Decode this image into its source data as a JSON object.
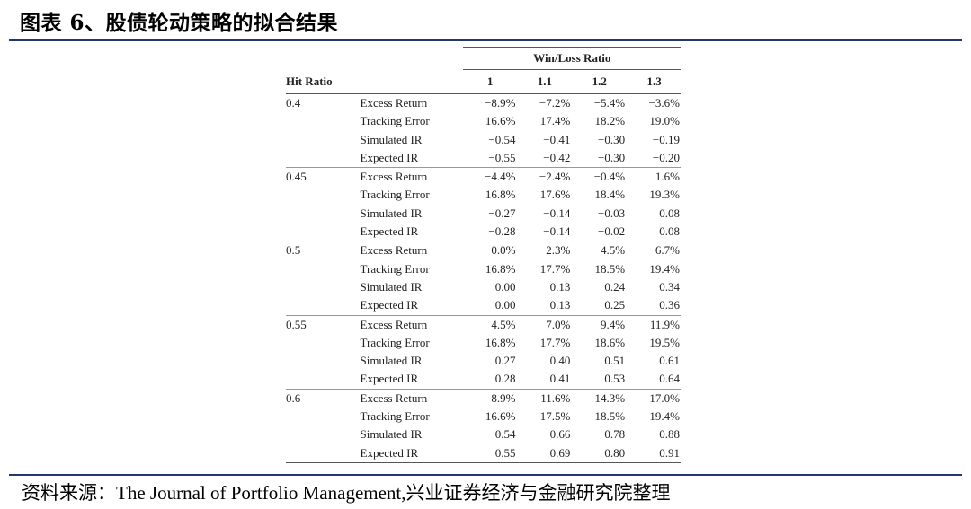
{
  "figure": {
    "title": "图表 6、股债轮动策略的拟合结果"
  },
  "table": {
    "row_header": "Hit Ratio",
    "spanner": "Win/Loss Ratio",
    "columns": [
      "1",
      "1.1",
      "1.2",
      "1.3"
    ],
    "groups": [
      {
        "hit_ratio": "0.4",
        "rows": [
          {
            "metric": "Excess Return",
            "values": [
              "−8.9%",
              "−7.2%",
              "−5.4%",
              "−3.6%"
            ]
          },
          {
            "metric": "Tracking Error",
            "values": [
              "16.6%",
              "17.4%",
              "18.2%",
              "19.0%"
            ]
          },
          {
            "metric": "Simulated IR",
            "values": [
              "−0.54",
              "−0.41",
              "−0.30",
              "−0.19"
            ]
          },
          {
            "metric": "Expected IR",
            "values": [
              "−0.55",
              "−0.42",
              "−0.30",
              "−0.20"
            ]
          }
        ]
      },
      {
        "hit_ratio": "0.45",
        "rows": [
          {
            "metric": "Excess Return",
            "values": [
              "−4.4%",
              "−2.4%",
              "−0.4%",
              "1.6%"
            ]
          },
          {
            "metric": "Tracking Error",
            "values": [
              "16.8%",
              "17.6%",
              "18.4%",
              "19.3%"
            ]
          },
          {
            "metric": "Simulated IR",
            "values": [
              "−0.27",
              "−0.14",
              "−0.03",
              "0.08"
            ]
          },
          {
            "metric": "Expected IR",
            "values": [
              "−0.28",
              "−0.14",
              "−0.02",
              "0.08"
            ]
          }
        ]
      },
      {
        "hit_ratio": "0.5",
        "rows": [
          {
            "metric": "Excess Return",
            "values": [
              "0.0%",
              "2.3%",
              "4.5%",
              "6.7%"
            ]
          },
          {
            "metric": "Tracking Error",
            "values": [
              "16.8%",
              "17.7%",
              "18.5%",
              "19.4%"
            ]
          },
          {
            "metric": "Simulated IR",
            "values": [
              "0.00",
              "0.13",
              "0.24",
              "0.34"
            ]
          },
          {
            "metric": "Expected IR",
            "values": [
              "0.00",
              "0.13",
              "0.25",
              "0.36"
            ]
          }
        ]
      },
      {
        "hit_ratio": "0.55",
        "rows": [
          {
            "metric": "Excess Return",
            "values": [
              "4.5%",
              "7.0%",
              "9.4%",
              "11.9%"
            ]
          },
          {
            "metric": "Tracking Error",
            "values": [
              "16.8%",
              "17.7%",
              "18.6%",
              "19.5%"
            ]
          },
          {
            "metric": "Simulated IR",
            "values": [
              "0.27",
              "0.40",
              "0.51",
              "0.61"
            ]
          },
          {
            "metric": "Expected IR",
            "values": [
              "0.28",
              "0.41",
              "0.53",
              "0.64"
            ]
          }
        ]
      },
      {
        "hit_ratio": "0.6",
        "rows": [
          {
            "metric": "Excess Return",
            "values": [
              "8.9%",
              "11.6%",
              "14.3%",
              "17.0%"
            ]
          },
          {
            "metric": "Tracking Error",
            "values": [
              "16.6%",
              "17.5%",
              "18.5%",
              "19.4%"
            ]
          },
          {
            "metric": "Simulated IR",
            "values": [
              "0.54",
              "0.66",
              "0.78",
              "0.88"
            ]
          },
          {
            "metric": "Expected IR",
            "values": [
              "0.55",
              "0.69",
              "0.80",
              "0.91"
            ]
          }
        ]
      }
    ]
  },
  "source": {
    "text": "资料来源：The Journal of Portfolio Management,兴业证券经济与金融研究院整理"
  }
}
